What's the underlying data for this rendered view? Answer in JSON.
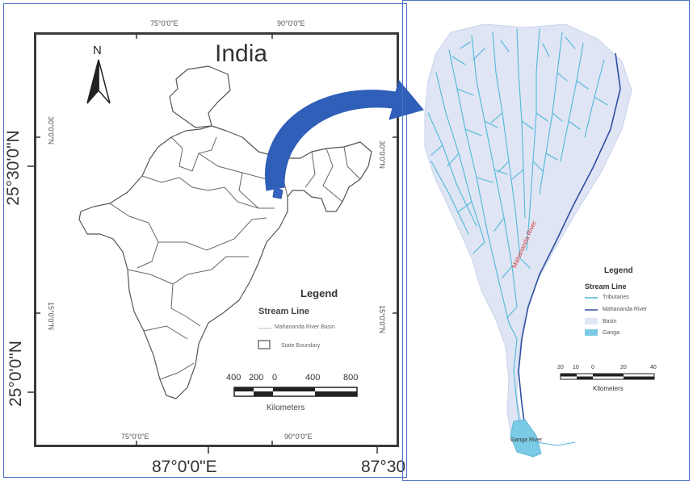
{
  "left_map": {
    "outer_lon_labels": [
      "87°0'0\"E",
      "87°30"
    ],
    "outer_lat_labels": [
      "25°30'0\"N",
      "25°0'0\"N"
    ],
    "top_lon_labels": [
      "75°0'0\"E",
      "90°0'0\"E"
    ],
    "bottom_lon_labels": [
      "75°0'0\"E",
      "90°0'0\"E"
    ],
    "left_lat_labels": [
      "30°0'0\"N",
      "15°0'0\"N"
    ],
    "right_lat_labels": [
      "30°0'0\"N",
      "15°0'0\"N"
    ],
    "title": "India",
    "north_label": "N",
    "legend": {
      "title": "Legend",
      "subtitle": "Stream Line",
      "items": [
        "Mahananda River Basin",
        "State Boundary"
      ]
    },
    "scale": {
      "ticks": [
        "400",
        "200",
        "0",
        "400",
        "800"
      ],
      "unit": "Kilometers"
    }
  },
  "right_map": {
    "river_label": "Mahananda River",
    "outlet_label": "Ganga River",
    "legend": {
      "title": "Legend",
      "subtitle": "Stream Line",
      "items": [
        "Tributaries",
        "Mahananda River",
        "Basin",
        "Ganga"
      ]
    },
    "scale": {
      "ticks": [
        "20",
        "10",
        "0",
        "20",
        "40"
      ],
      "unit": "Kilometers"
    }
  },
  "colors": {
    "frame": "#4a72c4",
    "arrow": "#2f5fb8",
    "basin": "#dfe5f4",
    "tributary": "#4fb8d9",
    "main_river": "#2e4fa0",
    "ganga": "#7ccbe6",
    "river_label": "#d03a3a"
  }
}
